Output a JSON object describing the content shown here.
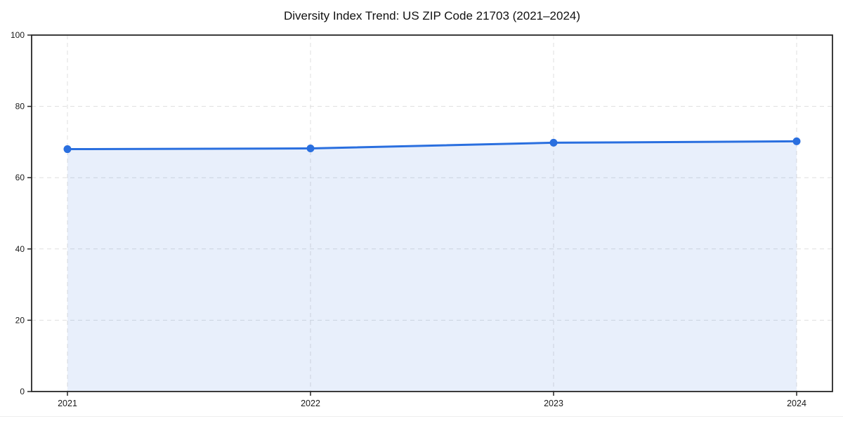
{
  "figure": {
    "title": "Diversity Index Trend: US ZIP Code 21703 (2021–2024)"
  },
  "chart_data": {
    "type": "area",
    "title": "Diversity Index Trend: US ZIP Code 21703 (2021–2024)",
    "categories": [
      "2021",
      "2022",
      "2023",
      "2024"
    ],
    "series": [
      {
        "name": "Diversity Index",
        "values": [
          68.0,
          68.2,
          69.8,
          70.2
        ]
      }
    ],
    "xlabel": "",
    "ylabel": "",
    "ylim": [
      0,
      100
    ],
    "yticks": [
      0,
      20,
      40,
      60,
      80,
      100
    ],
    "grid": true,
    "grid_style": "dashed",
    "legend_position": "none",
    "colors": {
      "line": "#2a6fdf",
      "marker": "#2a6fdf",
      "area_fill_rgba": "rgba(42,111,223,0.11)",
      "grid": "#dfdfdf",
      "spine": "#262626",
      "tick_label": "#1a1a1a",
      "title": "#111111",
      "background": "#ffffff"
    }
  }
}
